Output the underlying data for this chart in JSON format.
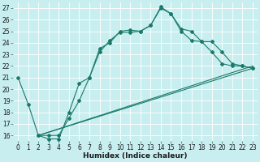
{
  "xlabel": "Humidex (Indice chaleur)",
  "bg_color": "#c8eef0",
  "grid_color": "#ffffff",
  "line_color": "#1a7a6a",
  "xlim": [
    -0.5,
    23.5
  ],
  "ylim": [
    15.5,
    27.5
  ],
  "xticks": [
    0,
    1,
    2,
    3,
    4,
    5,
    6,
    7,
    8,
    9,
    10,
    11,
    12,
    13,
    14,
    15,
    16,
    17,
    18,
    19,
    20,
    21,
    22,
    23
  ],
  "yticks": [
    16,
    17,
    18,
    19,
    20,
    21,
    22,
    23,
    24,
    25,
    26,
    27
  ],
  "line1_x": [
    0,
    1,
    2,
    3,
    4,
    5,
    6,
    7,
    8,
    9,
    10,
    11,
    12,
    13,
    14,
    15,
    16,
    17,
    18,
    19,
    20,
    21,
    22,
    23
  ],
  "line1_y": [
    21.0,
    18.7,
    16.0,
    16.0,
    16.0,
    17.5,
    19.0,
    21.0,
    23.2,
    24.2,
    24.9,
    24.9,
    25.0,
    25.5,
    27.1,
    26.5,
    25.2,
    25.0,
    24.1,
    23.2,
    22.2,
    22.0,
    22.0,
    21.8
  ],
  "line2_x": [
    2,
    3,
    4,
    5,
    6,
    7,
    8,
    9,
    10,
    11,
    12,
    13,
    14,
    15,
    16,
    17,
    18,
    19,
    20,
    21,
    22,
    23
  ],
  "line2_y": [
    16.0,
    15.7,
    15.7,
    18.0,
    20.5,
    21.0,
    23.5,
    24.0,
    25.0,
    25.1,
    25.0,
    25.5,
    27.0,
    26.5,
    25.0,
    24.2,
    24.1,
    24.1,
    23.2,
    22.2,
    22.0,
    21.8
  ],
  "line3_x": [
    2,
    23
  ],
  "line3_y": [
    16.0,
    21.8
  ],
  "line4_x": [
    2,
    23
  ],
  "line4_y": [
    16.0,
    21.8
  ],
  "tick_fontsize": 5.5,
  "xlabel_fontsize": 6.5,
  "xlabel_fontweight": "bold"
}
